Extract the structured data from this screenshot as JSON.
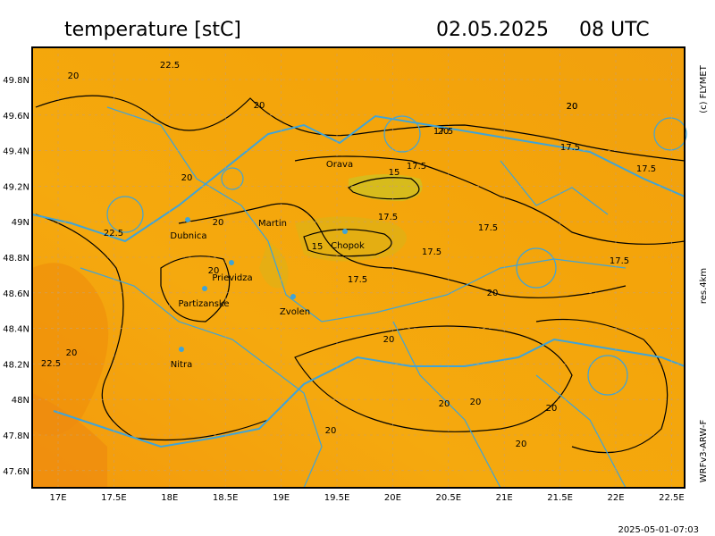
{
  "header": {
    "title": "temperature [stC]",
    "date": "02.05.2025",
    "time": "08 UTC"
  },
  "side_labels": {
    "copyright": "(c) FLYMET",
    "resolution": "res.4km",
    "model": "WRFv3-ARW-F"
  },
  "axes": {
    "longitude": [
      "17E",
      "17.5E",
      "18E",
      "18.5E",
      "19E",
      "19.5E",
      "20E",
      "20.5E",
      "21E",
      "21.5E",
      "22E",
      "22.5E"
    ],
    "latitude": [
      "49.8N",
      "49.6N",
      "49.4N",
      "49.2N",
      "49N",
      "48.8N",
      "48.6N",
      "48.4N",
      "48.2N",
      "48N",
      "47.8N",
      "47.6N"
    ]
  },
  "cities": [
    "Orava",
    "Martin",
    "Dubnica",
    "Chopok",
    "Prievidza",
    "Partizanske",
    "Zvolen",
    "Nitra"
  ],
  "contour_labels": [
    "20",
    "22.5",
    "20",
    "20",
    "20",
    "20",
    "17.5",
    "17.5",
    "15",
    "17.5",
    "17.5",
    "15",
    "17.5",
    "17.5",
    "22.5",
    "20",
    "20",
    "17.5",
    "20",
    "17.5",
    "20",
    "22.5",
    "20",
    "20",
    "20",
    "20",
    "20",
    "17.5",
    "20",
    "20"
  ],
  "footer": {
    "timestamp": "2025-05-01-07:03"
  }
}
